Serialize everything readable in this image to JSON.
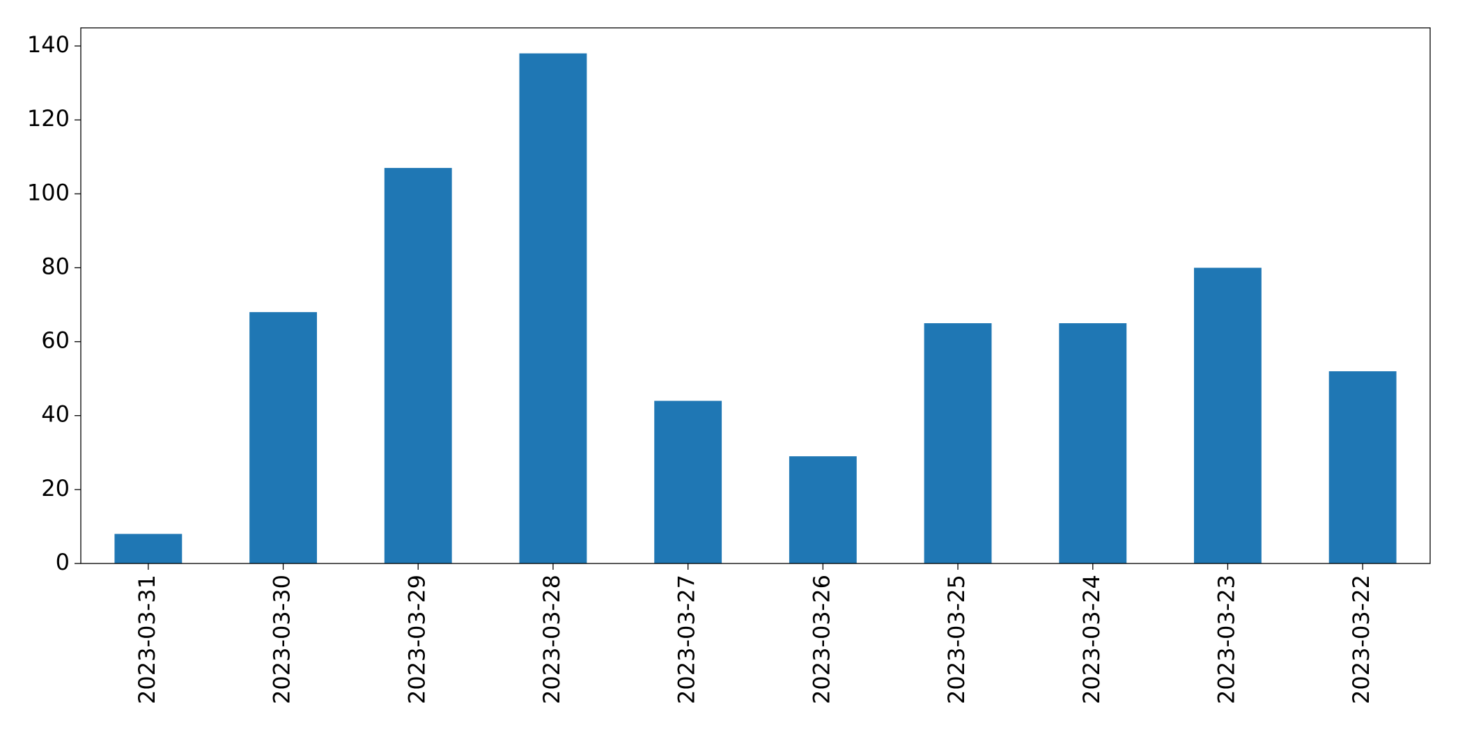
{
  "chart_data": {
    "type": "bar",
    "categories": [
      "2023-03-31",
      "2023-03-30",
      "2023-03-29",
      "2023-03-28",
      "2023-03-27",
      "2023-03-26",
      "2023-03-25",
      "2023-03-24",
      "2023-03-23",
      "2023-03-22"
    ],
    "values": [
      8,
      68,
      107,
      138,
      44,
      29,
      65,
      65,
      80,
      52
    ],
    "color": "#1f77b4",
    "ylim": [
      0,
      144.9
    ],
    "yticks": [
      0,
      20,
      40,
      60,
      80,
      100,
      120,
      140
    ],
    "grid": false
  }
}
